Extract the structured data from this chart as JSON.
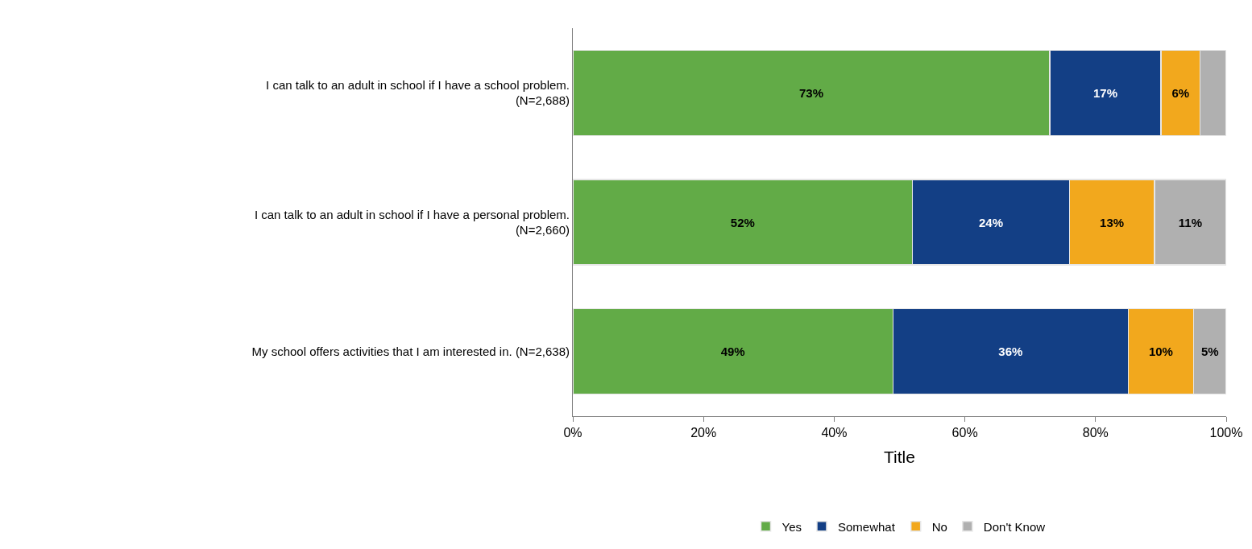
{
  "chart_data": {
    "type": "bar",
    "orientation": "horizontal",
    "stacked": true,
    "xlabel": "Title",
    "categories": [
      "I can talk to an adult in school if I have a school problem.\n(N=2,688)",
      "I can talk to an adult in school if I have a personal problem.\n(N=2,660)",
      "My school offers activities that I am interested in. (N=2,638)"
    ],
    "series": [
      {
        "name": "Yes",
        "color": "#62ab47",
        "values": [
          73,
          52,
          49
        ],
        "value_labels": [
          "73%",
          "52%",
          "49%"
        ]
      },
      {
        "name": "Somewhat",
        "color": "#133f85",
        "values": [
          17,
          24,
          36
        ],
        "value_labels": [
          "17%",
          "24%",
          "36%"
        ]
      },
      {
        "name": "No",
        "color": "#f2a81d",
        "values": [
          6,
          13,
          10
        ],
        "value_labels": [
          "6%",
          "13%",
          "10%"
        ]
      },
      {
        "name": "Don't Know",
        "color": "#b0b0b0",
        "values": [
          4,
          11,
          5
        ],
        "value_labels": [
          null,
          "11%",
          "5%"
        ]
      }
    ],
    "xlim": [
      0,
      100
    ],
    "xticks": [
      {
        "value": 0,
        "label": "0%"
      },
      {
        "value": 20,
        "label": "20%"
      },
      {
        "value": 40,
        "label": "40%"
      },
      {
        "value": 60,
        "label": "60%"
      },
      {
        "value": 80,
        "label": "80%"
      },
      {
        "value": 100,
        "label": "100%"
      }
    ],
    "legend": "bottom"
  }
}
